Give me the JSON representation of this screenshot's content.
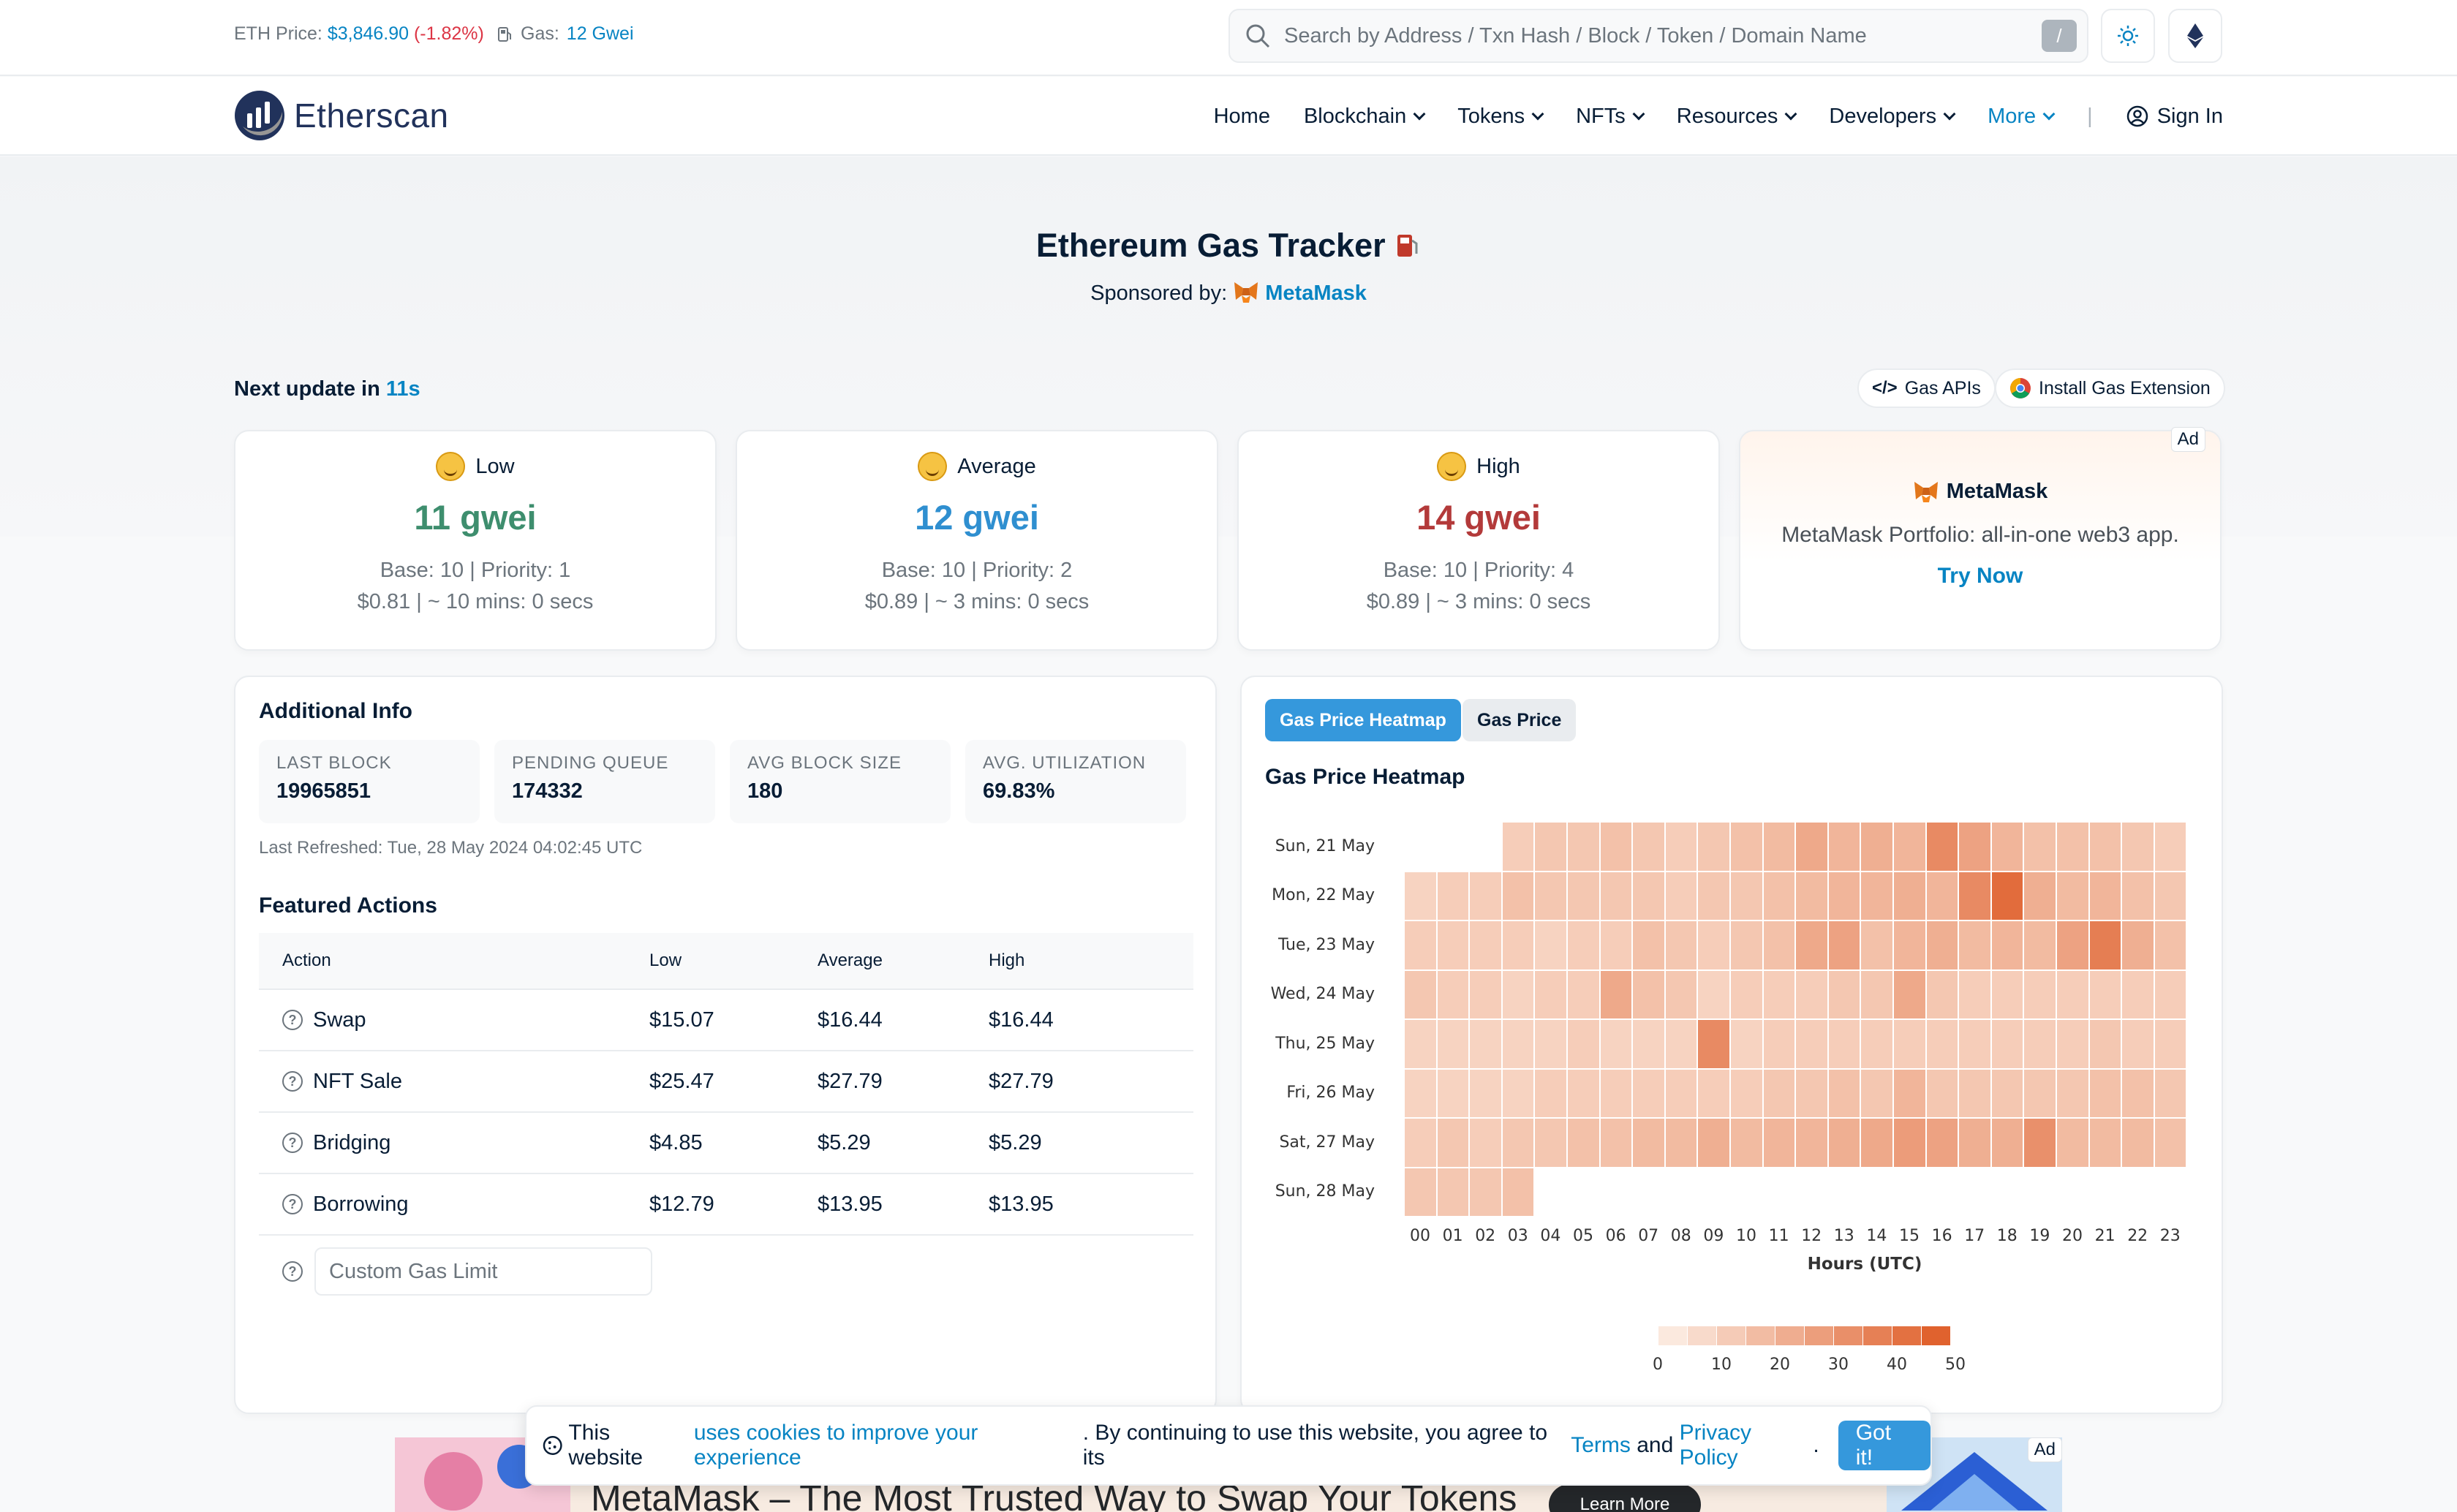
{
  "topbar": {
    "eth_price_label": "ETH Price:",
    "eth_price_value": "$3,846.90",
    "eth_price_change": "(-1.82%)",
    "gas_label": "Gas:",
    "gas_value": "12 Gwei",
    "search_placeholder": "Search by Address / Txn Hash / Block / Token / Domain Name",
    "search_shortcut": "/"
  },
  "nav": {
    "logo_text": "Etherscan",
    "items": [
      "Home",
      "Blockchain",
      "Tokens",
      "NFTs",
      "Resources",
      "Developers",
      "More"
    ],
    "sign_in": "Sign In"
  },
  "page": {
    "title": "Ethereum Gas Tracker",
    "sponsored_by": "Sponsored by:",
    "sponsor_name": "MetaMask",
    "next_update_label": "Next update in",
    "next_update_value": "11s",
    "gas_apis": "Gas APIs",
    "install_extension": "Install Gas Extension"
  },
  "gas_cards": [
    {
      "label": "Low",
      "value": "11 gwei",
      "color": "#3e8e6e",
      "line1": "Base: 10 | Priority: 1",
      "line2": "$0.81 | ~ 10 mins: 0 secs"
    },
    {
      "label": "Average",
      "value": "12 gwei",
      "color": "#2f8fd0",
      "line1": "Base: 10 | Priority: 2",
      "line2": "$0.89 | ~ 3 mins: 0 secs"
    },
    {
      "label": "High",
      "value": "14 gwei",
      "color": "#b33a3a",
      "line1": "Base: 10 | Priority: 4",
      "line2": "$0.89 | ~ 3 mins: 0 secs"
    }
  ],
  "ad_card": {
    "tag": "Ad",
    "brand": "MetaMask",
    "description": "MetaMask Portfolio: all-in-one web3 app.",
    "cta": "Try Now"
  },
  "additional_info": {
    "heading": "Additional Info",
    "stats": [
      {
        "key": "LAST BLOCK",
        "value": "19965851"
      },
      {
        "key": "PENDING QUEUE",
        "value": "174332"
      },
      {
        "key": "AVG BLOCK SIZE",
        "value": "180"
      },
      {
        "key": "AVG. UTILIZATION",
        "value": "69.83%"
      }
    ],
    "last_refreshed": "Last Refreshed: Tue, 28 May 2024 04:02:45 UTC"
  },
  "featured_actions": {
    "heading": "Featured Actions",
    "columns": [
      "Action",
      "Low",
      "Average",
      "High"
    ],
    "rows": [
      {
        "action": "Swap",
        "low": "$15.07",
        "average": "$16.44",
        "high": "$16.44"
      },
      {
        "action": "NFT Sale",
        "low": "$25.47",
        "average": "$27.79",
        "high": "$27.79"
      },
      {
        "action": "Bridging",
        "low": "$4.85",
        "average": "$5.29",
        "high": "$5.29"
      },
      {
        "action": "Borrowing",
        "low": "$12.79",
        "average": "$13.95",
        "high": "$13.95"
      }
    ],
    "custom_placeholder": "Custom Gas Limit"
  },
  "heatmap_panel": {
    "tab_active": "Gas Price Heatmap",
    "tab_inactive": "Gas Price",
    "title": "Gas Price Heatmap"
  },
  "chart_data": {
    "type": "heatmap",
    "title": "Gas Price Heatmap",
    "xlabel": "Hours (UTC)",
    "x": [
      "00",
      "01",
      "02",
      "03",
      "04",
      "05",
      "06",
      "07",
      "08",
      "09",
      "10",
      "11",
      "12",
      "13",
      "14",
      "15",
      "16",
      "17",
      "18",
      "19",
      "20",
      "21",
      "22",
      "23"
    ],
    "y": [
      "Sun, 21 May",
      "Mon, 22 May",
      "Tue, 23 May",
      "Wed, 24 May",
      "Thu, 25 May",
      "Fri, 26 May",
      "Sat, 27 May",
      "Sun, 28 May"
    ],
    "values": [
      [
        null,
        null,
        null,
        12,
        14,
        14,
        16,
        14,
        12,
        14,
        16,
        18,
        24,
        20,
        22,
        20,
        34,
        26,
        20,
        16,
        16,
        16,
        14,
        12
      ],
      [
        10,
        12,
        12,
        16,
        14,
        14,
        14,
        14,
        12,
        14,
        14,
        16,
        18,
        20,
        20,
        22,
        20,
        34,
        44,
        22,
        18,
        20,
        16,
        14
      ],
      [
        12,
        12,
        12,
        12,
        10,
        12,
        12,
        16,
        14,
        12,
        14,
        16,
        24,
        26,
        16,
        20,
        22,
        18,
        20,
        18,
        26,
        38,
        22,
        16
      ],
      [
        14,
        12,
        12,
        10,
        12,
        12,
        24,
        16,
        14,
        10,
        12,
        12,
        12,
        14,
        14,
        24,
        14,
        12,
        12,
        12,
        12,
        12,
        12,
        12
      ],
      [
        10,
        10,
        10,
        10,
        10,
        12,
        10,
        10,
        10,
        34,
        10,
        12,
        12,
        12,
        12,
        12,
        12,
        12,
        12,
        12,
        12,
        14,
        12,
        12
      ],
      [
        10,
        10,
        10,
        10,
        12,
        12,
        12,
        12,
        12,
        12,
        12,
        14,
        14,
        16,
        14,
        20,
        14,
        14,
        14,
        14,
        14,
        16,
        16,
        14
      ],
      [
        12,
        14,
        12,
        14,
        14,
        16,
        16,
        18,
        18,
        22,
        18,
        20,
        20,
        22,
        24,
        28,
        26,
        22,
        22,
        32,
        18,
        18,
        18,
        16
      ],
      [
        14,
        14,
        14,
        16,
        null,
        null,
        null,
        null,
        null,
        null,
        null,
        null,
        null,
        null,
        null,
        null,
        null,
        null,
        null,
        null,
        null,
        null,
        null,
        null
      ]
    ],
    "legend_ticks": [
      0,
      10,
      20,
      30,
      40,
      50
    ],
    "color_low": "#fdf1e8",
    "color_high": "#de5a24"
  },
  "cookie": {
    "text_start": "This website",
    "link1": "uses cookies to improve your experience",
    "text_mid": ". By continuing to use this website, you agree to its",
    "terms": "Terms",
    "and": "and",
    "privacy": "Privacy Policy",
    "button": "Got it!"
  },
  "bottom_banner": {
    "headline": "MetaMask – The Most Trusted Way to Swap Your Tokens",
    "cta": "Learn More",
    "tag": "Ad"
  }
}
